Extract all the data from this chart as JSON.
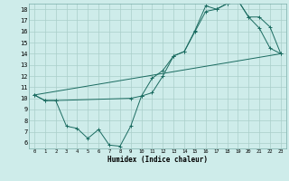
{
  "xlabel": "Humidex (Indice chaleur)",
  "background_color": "#ceecea",
  "grid_color": "#aaceca",
  "line_color": "#1a6b60",
  "xlim": [
    -0.5,
    23.5
  ],
  "ylim": [
    5.5,
    18.5
  ],
  "xticks": [
    0,
    1,
    2,
    3,
    4,
    5,
    6,
    7,
    8,
    9,
    10,
    11,
    12,
    13,
    14,
    15,
    16,
    17,
    18,
    19,
    20,
    21,
    22,
    23
  ],
  "yticks": [
    6,
    7,
    8,
    9,
    10,
    11,
    12,
    13,
    14,
    15,
    16,
    17,
    18
  ],
  "line1_x": [
    0,
    1,
    2,
    3,
    4,
    5,
    6,
    7,
    8,
    9,
    10,
    11,
    12,
    13,
    14,
    15,
    16,
    17,
    18,
    19,
    20,
    21,
    22,
    23
  ],
  "line1_y": [
    10.3,
    9.8,
    9.8,
    7.5,
    7.3,
    6.4,
    7.2,
    5.8,
    5.7,
    7.5,
    10.2,
    10.5,
    12.0,
    13.8,
    14.2,
    16.1,
    18.3,
    18.0,
    18.5,
    18.8,
    17.3,
    16.3,
    14.5,
    14.0
  ],
  "line2_x": [
    0,
    1,
    2,
    9,
    10,
    11,
    12,
    13,
    14,
    15,
    16,
    17,
    18,
    19,
    20,
    21,
    22,
    23
  ],
  "line2_y": [
    10.3,
    9.8,
    9.8,
    10.0,
    10.2,
    11.8,
    12.5,
    13.8,
    14.2,
    16.0,
    17.8,
    18.0,
    18.5,
    18.8,
    17.3,
    17.3,
    16.4,
    14.0
  ],
  "line3_x": [
    0,
    23
  ],
  "line3_y": [
    10.3,
    14.0
  ]
}
